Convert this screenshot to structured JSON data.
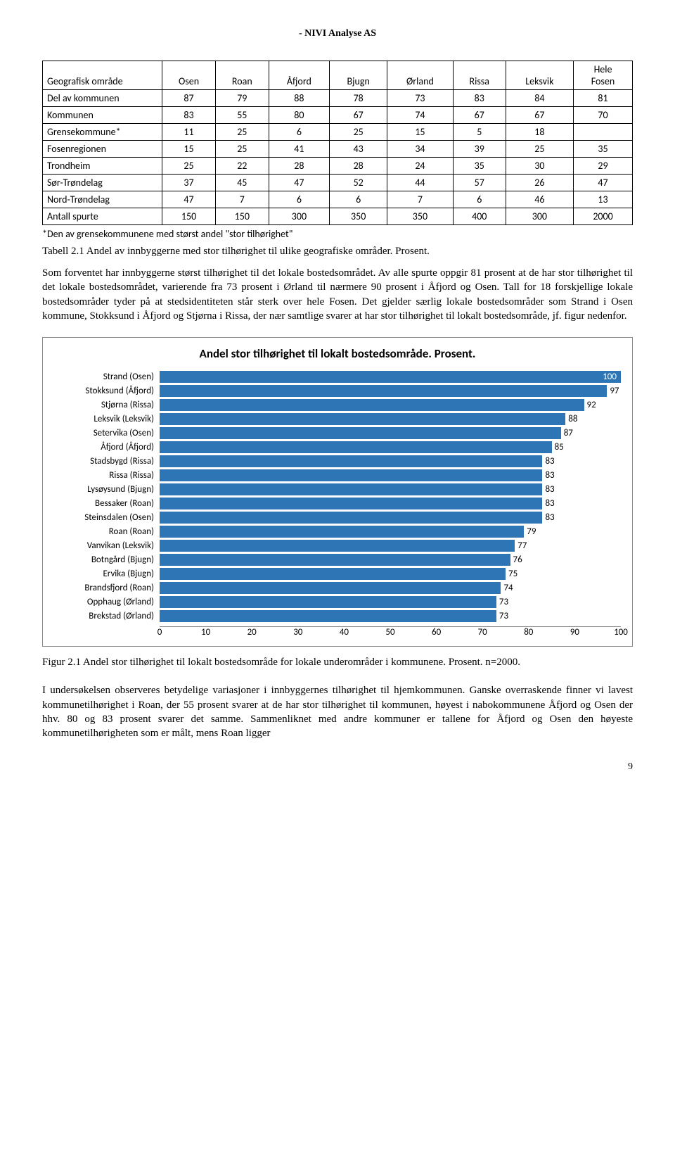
{
  "header": "- NIVI Analyse AS",
  "table": {
    "columns": [
      "Geografisk område",
      "Osen",
      "Roan",
      "Åfjord",
      "Bjugn",
      "Ørland",
      "Rissa",
      "Leksvik",
      "Hele Fosen"
    ],
    "rows": [
      [
        "Del av kommunen",
        "87",
        "79",
        "88",
        "78",
        "73",
        "83",
        "84",
        "81"
      ],
      [
        "Kommunen",
        "83",
        "55",
        "80",
        "67",
        "74",
        "67",
        "67",
        "70"
      ],
      [
        "Grensekommune*",
        "11",
        "25",
        "6",
        "25",
        "15",
        "5",
        "18",
        ""
      ],
      [
        "Fosenregionen",
        "15",
        "25",
        "41",
        "43",
        "34",
        "39",
        "25",
        "35"
      ],
      [
        "Trondheim",
        "25",
        "22",
        "28",
        "28",
        "24",
        "35",
        "30",
        "29"
      ],
      [
        "Sør-Trøndelag",
        "37",
        "45",
        "47",
        "52",
        "44",
        "57",
        "26",
        "47"
      ],
      [
        "Nord-Trøndelag",
        "47",
        "7",
        "6",
        "6",
        "7",
        "6",
        "46",
        "13"
      ],
      [
        "Antall spurte",
        "150",
        "150",
        "300",
        "350",
        "350",
        "400",
        "300",
        "2000"
      ]
    ],
    "footnote": "*Den av grensekommunene med størst andel \"stor tilhørighet\""
  },
  "caption1": "Tabell 2.1 Andel av innbyggerne med stor tilhørighet til ulike geografiske områder. Prosent.",
  "para1": "Som forventet har innbyggerne størst tilhørighet til det lokale bostedsområdet. Av alle spurte oppgir 81 prosent at de har stor tilhørighet til det lokale bostedsområdet, varierende fra 73 prosent i Ørland til nærmere 90 prosent i Åfjord og Osen. Tall for 18 forskjellige lokale bostedsområder tyder på at stedsidentiteten står sterk over hele Fosen. Det gjelder særlig lokale bostedsområder som Strand i Osen kommune, Stokksund i Åfjord og Stjørna i Rissa, der nær samtlige svarer at har stor tilhørighet til lokalt bostedsområde, jf. figur nedenfor.",
  "chart": {
    "title": "Andel stor tilhørighet til lokalt bostedsområde. Prosent.",
    "bar_color": "#2e75b6",
    "xmax": 100,
    "xticks": [
      0,
      10,
      20,
      30,
      40,
      50,
      60,
      70,
      80,
      90,
      100
    ],
    "bars": [
      {
        "label": "Strand (Osen)",
        "value": 100
      },
      {
        "label": "Stokksund (Åfjord)",
        "value": 97
      },
      {
        "label": "Stjørna (Rissa)",
        "value": 92
      },
      {
        "label": "Leksvik (Leksvik)",
        "value": 88
      },
      {
        "label": "Setervika (Osen)",
        "value": 87
      },
      {
        "label": "Åfjord (Åfjord)",
        "value": 85
      },
      {
        "label": "Stadsbygd (Rissa)",
        "value": 83
      },
      {
        "label": "Rissa (Rissa)",
        "value": 83
      },
      {
        "label": "Lysøysund (Bjugn)",
        "value": 83
      },
      {
        "label": "Bessaker (Roan)",
        "value": 83
      },
      {
        "label": "Steinsdalen (Osen)",
        "value": 83
      },
      {
        "label": "Roan (Roan)",
        "value": 79
      },
      {
        "label": "Vanvikan (Leksvik)",
        "value": 77
      },
      {
        "label": "Botngård (Bjugn)",
        "value": 76
      },
      {
        "label": "Ervika (Bjugn)",
        "value": 75
      },
      {
        "label": "Brandsfjord (Roan)",
        "value": 74
      },
      {
        "label": "Opphaug (Ørland)",
        "value": 73
      },
      {
        "label": "Brekstad (Ørland)",
        "value": 73
      }
    ]
  },
  "caption2": "Figur 2.1 Andel stor tilhørighet til lokalt bostedsområde for lokale underområder i kommunene. Prosent. n=2000.",
  "para2": "I undersøkelsen observeres betydelige variasjoner i innbyggernes tilhørighet til hjemkommunen. Ganske overraskende finner vi lavest kommunetilhørighet i Roan, der 55 prosent svarer at de har stor tilhørighet til kommunen, høyest i nabokommunene Åfjord og Osen der hhv. 80 og 83 prosent svarer det samme. Sammenliknet med andre kommuner er tallene for Åfjord og Osen den høyeste kommunetilhørigheten som er målt, mens Roan ligger",
  "page_num": "9"
}
